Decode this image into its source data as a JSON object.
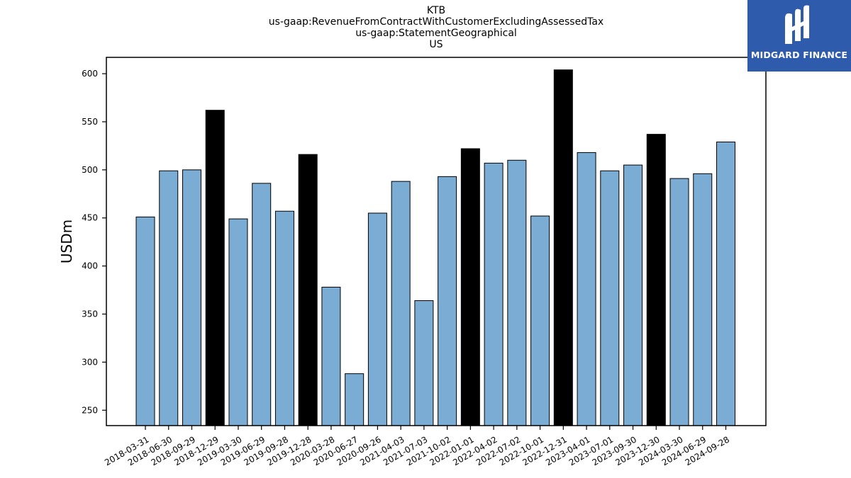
{
  "titles": [
    "KTB",
    "us-gaap:RevenueFromContractWithCustomerExcludingAssessedTax",
    "us-gaap:StatementGeographical",
    "US"
  ],
  "logo": {
    "text": "MIDGARD FINANCE",
    "background": "#2f5bac"
  },
  "chart_data": {
    "type": "bar",
    "title": "KTB",
    "ylabel": "USDm",
    "xlabel": "",
    "ylim": [
      234,
      617
    ],
    "yticks": [
      250,
      300,
      350,
      400,
      450,
      500,
      550,
      600
    ],
    "grid": false,
    "colors": {
      "quarter": "#7bacd3",
      "year_end": "#000000",
      "edge": "#000000"
    },
    "categories": [
      "2018-03-31",
      "2018-06-30",
      "2018-09-29",
      "2018-12-29",
      "2019-03-30",
      "2019-06-29",
      "2019-09-28",
      "2019-12-28",
      "2020-03-28",
      "2020-06-27",
      "2020-09-26",
      "2021-04-03",
      "2021-07-03",
      "2021-10-02",
      "2022-01-01",
      "2022-04-02",
      "2022-07-02",
      "2022-10-01",
      "2022-12-31",
      "2023-04-01",
      "2023-07-01",
      "2023-09-30",
      "2023-12-30",
      "2024-03-30",
      "2024-06-29",
      "2024-09-28"
    ],
    "values": [
      451,
      499,
      500,
      562,
      449,
      486,
      457,
      516,
      378,
      288,
      455,
      488,
      364,
      493,
      522,
      507,
      510,
      452,
      604,
      518,
      499,
      505,
      537,
      491,
      496,
      529
    ],
    "highlight": [
      false,
      false,
      false,
      true,
      false,
      false,
      false,
      true,
      false,
      false,
      false,
      false,
      false,
      false,
      true,
      false,
      false,
      false,
      true,
      false,
      false,
      false,
      true,
      false,
      false,
      false
    ]
  }
}
